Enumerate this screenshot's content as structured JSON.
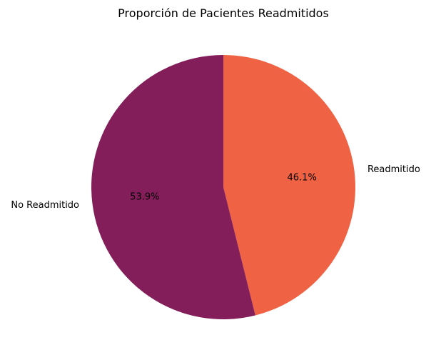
{
  "chart_data": {
    "type": "pie",
    "title": "Proporción de Pacientes Readmitidos",
    "slices": [
      {
        "label": "Readmitido",
        "value": 46.1,
        "pct_label": "46.1%",
        "color": "#f06244"
      },
      {
        "label": "No Readmitido",
        "value": 53.9,
        "pct_label": "53.9%",
        "color": "#841e5a"
      }
    ],
    "start_angle_deg": 90,
    "direction": "clockwise"
  }
}
